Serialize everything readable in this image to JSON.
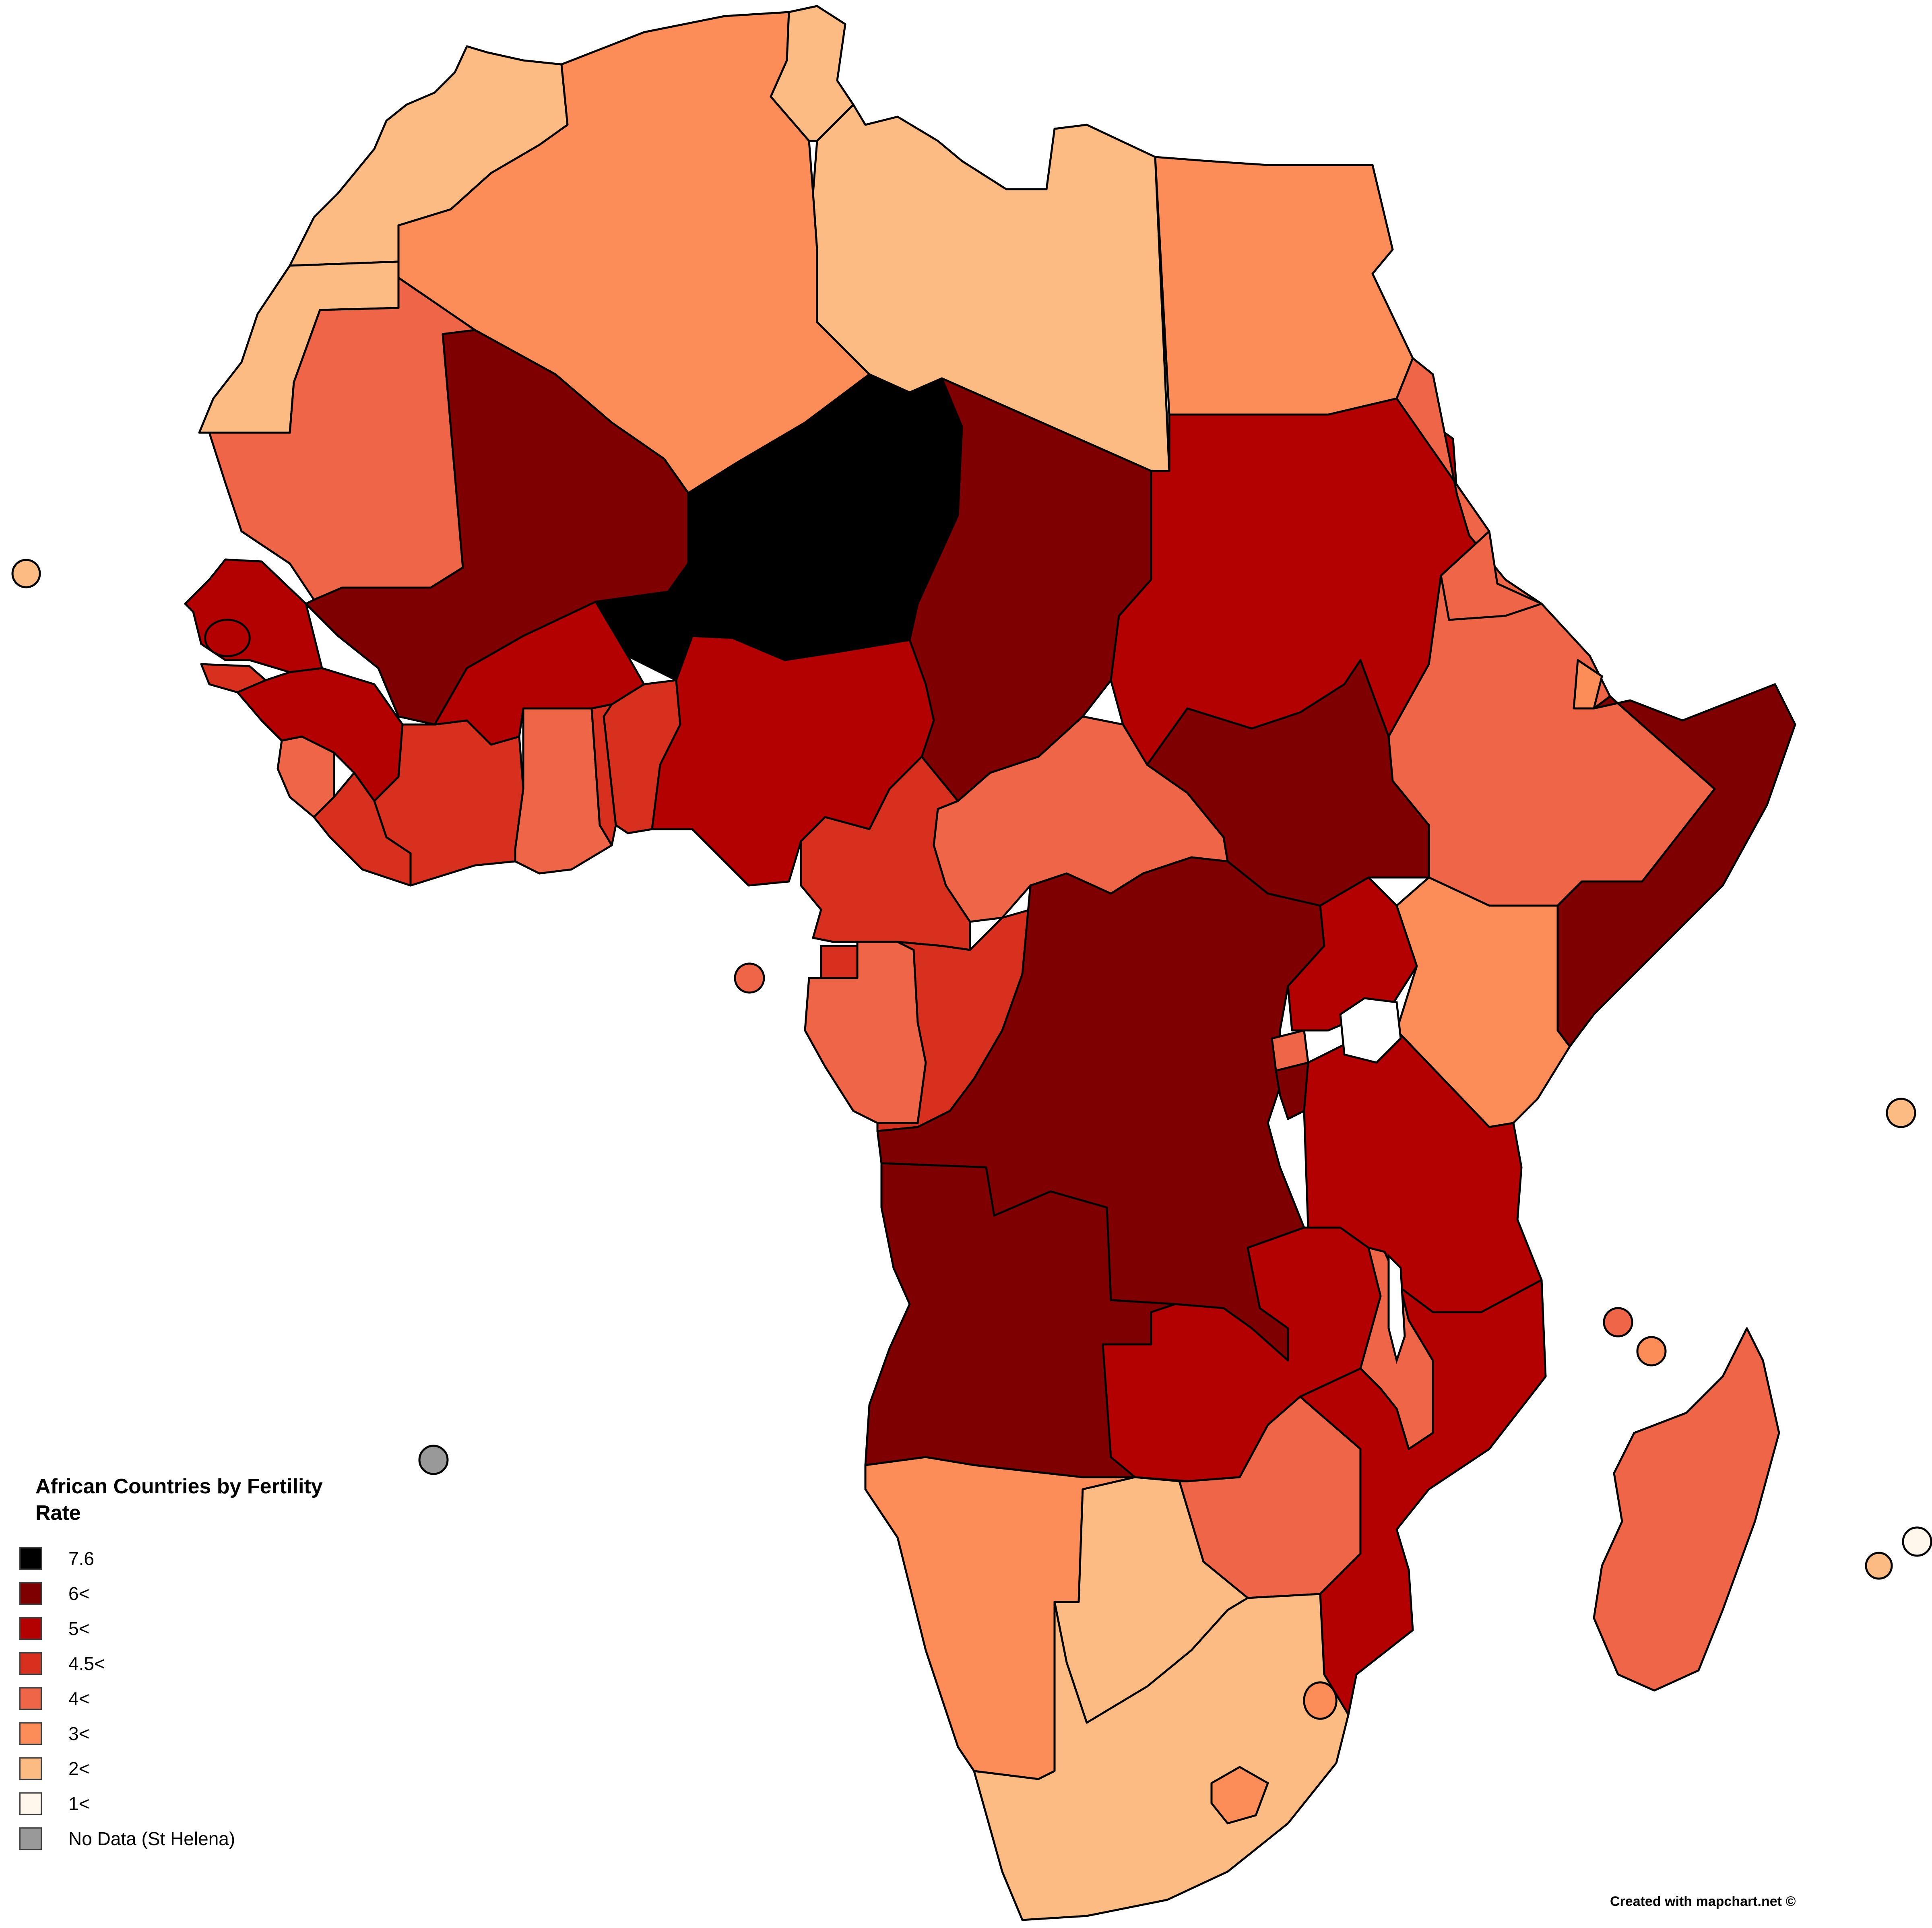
{
  "legend": {
    "title": "African Countries by Fertility Rate",
    "items": [
      {
        "label": "7.6",
        "color": "#000000"
      },
      {
        "label": "6<",
        "color": "#7f0000"
      },
      {
        "label": "5<",
        "color": "#b30000"
      },
      {
        "label": "4.5<",
        "color": "#d7301f"
      },
      {
        "label": "4<",
        "color": "#ef6548"
      },
      {
        "label": "3<",
        "color": "#fc8d59"
      },
      {
        "label": "2<",
        "color": "#fdbb84"
      },
      {
        "label": "1<",
        "color": "#fff7ec"
      },
      {
        "label": "No Data (St Helena)",
        "color": "#999999"
      }
    ]
  },
  "credit": "Created with mapchart.net ©"
}
